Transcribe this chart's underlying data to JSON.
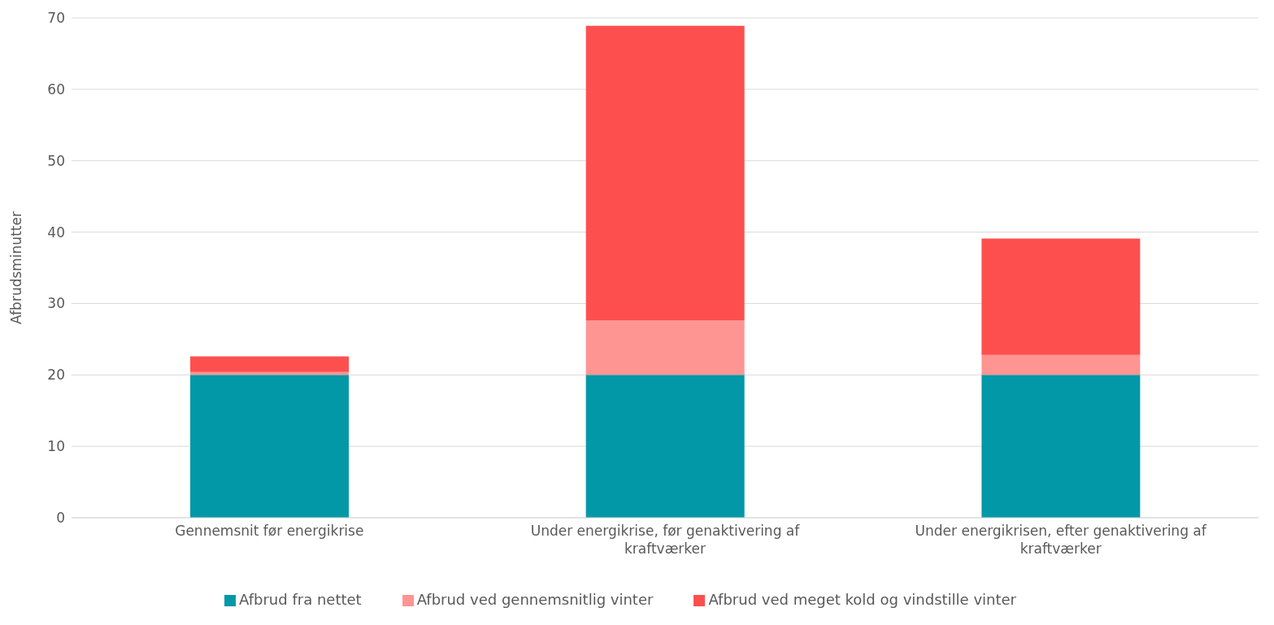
{
  "chart_data": {
    "type": "bar",
    "stacked": true,
    "ylabel": "Afbrudsminutter",
    "categories": [
      "Gennemsnit før energikrise",
      "Under energikrise, før genaktivering af kraftværker",
      "Under energikrisen, efter genaktivering af kraftværker"
    ],
    "series": [
      {
        "name": "Afbrud fra nettet",
        "color": "#0398a8",
        "values": [
          20,
          20,
          20
        ]
      },
      {
        "name": "Afbrud ved gennemsnitlig vinter",
        "color": "#fe9593",
        "values": [
          0.4,
          7.6,
          2.8
        ]
      },
      {
        "name": "Afbrud ved meget kold og vindstille vinter",
        "color": "#fe4f4f",
        "values": [
          2.2,
          41.3,
          16.3
        ]
      }
    ],
    "ylim": [
      0,
      70
    ],
    "yticks": [
      0,
      10,
      20,
      30,
      40,
      50,
      60,
      70
    ],
    "grid": "y",
    "legend": "bottom"
  }
}
